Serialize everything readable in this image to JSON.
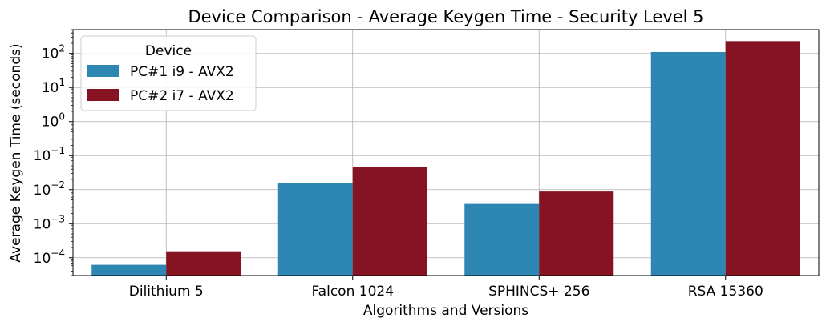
{
  "chart_data": {
    "type": "bar",
    "title": "Device Comparison - Average Keygen Time - Security Level 5",
    "xlabel": "Algorithms and Versions",
    "ylabel": "Average Keygen Time (seconds)",
    "yscale": "log",
    "ylim": [
      3e-05,
      500
    ],
    "yticks": [
      {
        "value": 0.0001,
        "base": "10",
        "exp": "−4"
      },
      {
        "value": 0.001,
        "base": "10",
        "exp": "−3"
      },
      {
        "value": 0.01,
        "base": "10",
        "exp": "−2"
      },
      {
        "value": 0.1,
        "base": "10",
        "exp": "−1"
      },
      {
        "value": 1,
        "base": "10",
        "exp": "0"
      },
      {
        "value": 10,
        "base": "10",
        "exp": "1"
      },
      {
        "value": 100,
        "base": "10",
        "exp": "2"
      }
    ],
    "grid": true,
    "legend": {
      "title": "Device",
      "placement": "top-left"
    },
    "categories": [
      "Dilithium 5",
      "Falcon 1024",
      "SPHINCS+ 256",
      "RSA 15360"
    ],
    "series": [
      {
        "name": "PC#1 i9 - AVX2",
        "color": "#2e86b2",
        "values": [
          6.2e-05,
          0.0155,
          0.0038,
          110
        ]
      },
      {
        "name": "PC#2 i7 - AVX2",
        "color": "#861322",
        "values": [
          0.000155,
          0.045,
          0.0088,
          230
        ]
      }
    ]
  }
}
